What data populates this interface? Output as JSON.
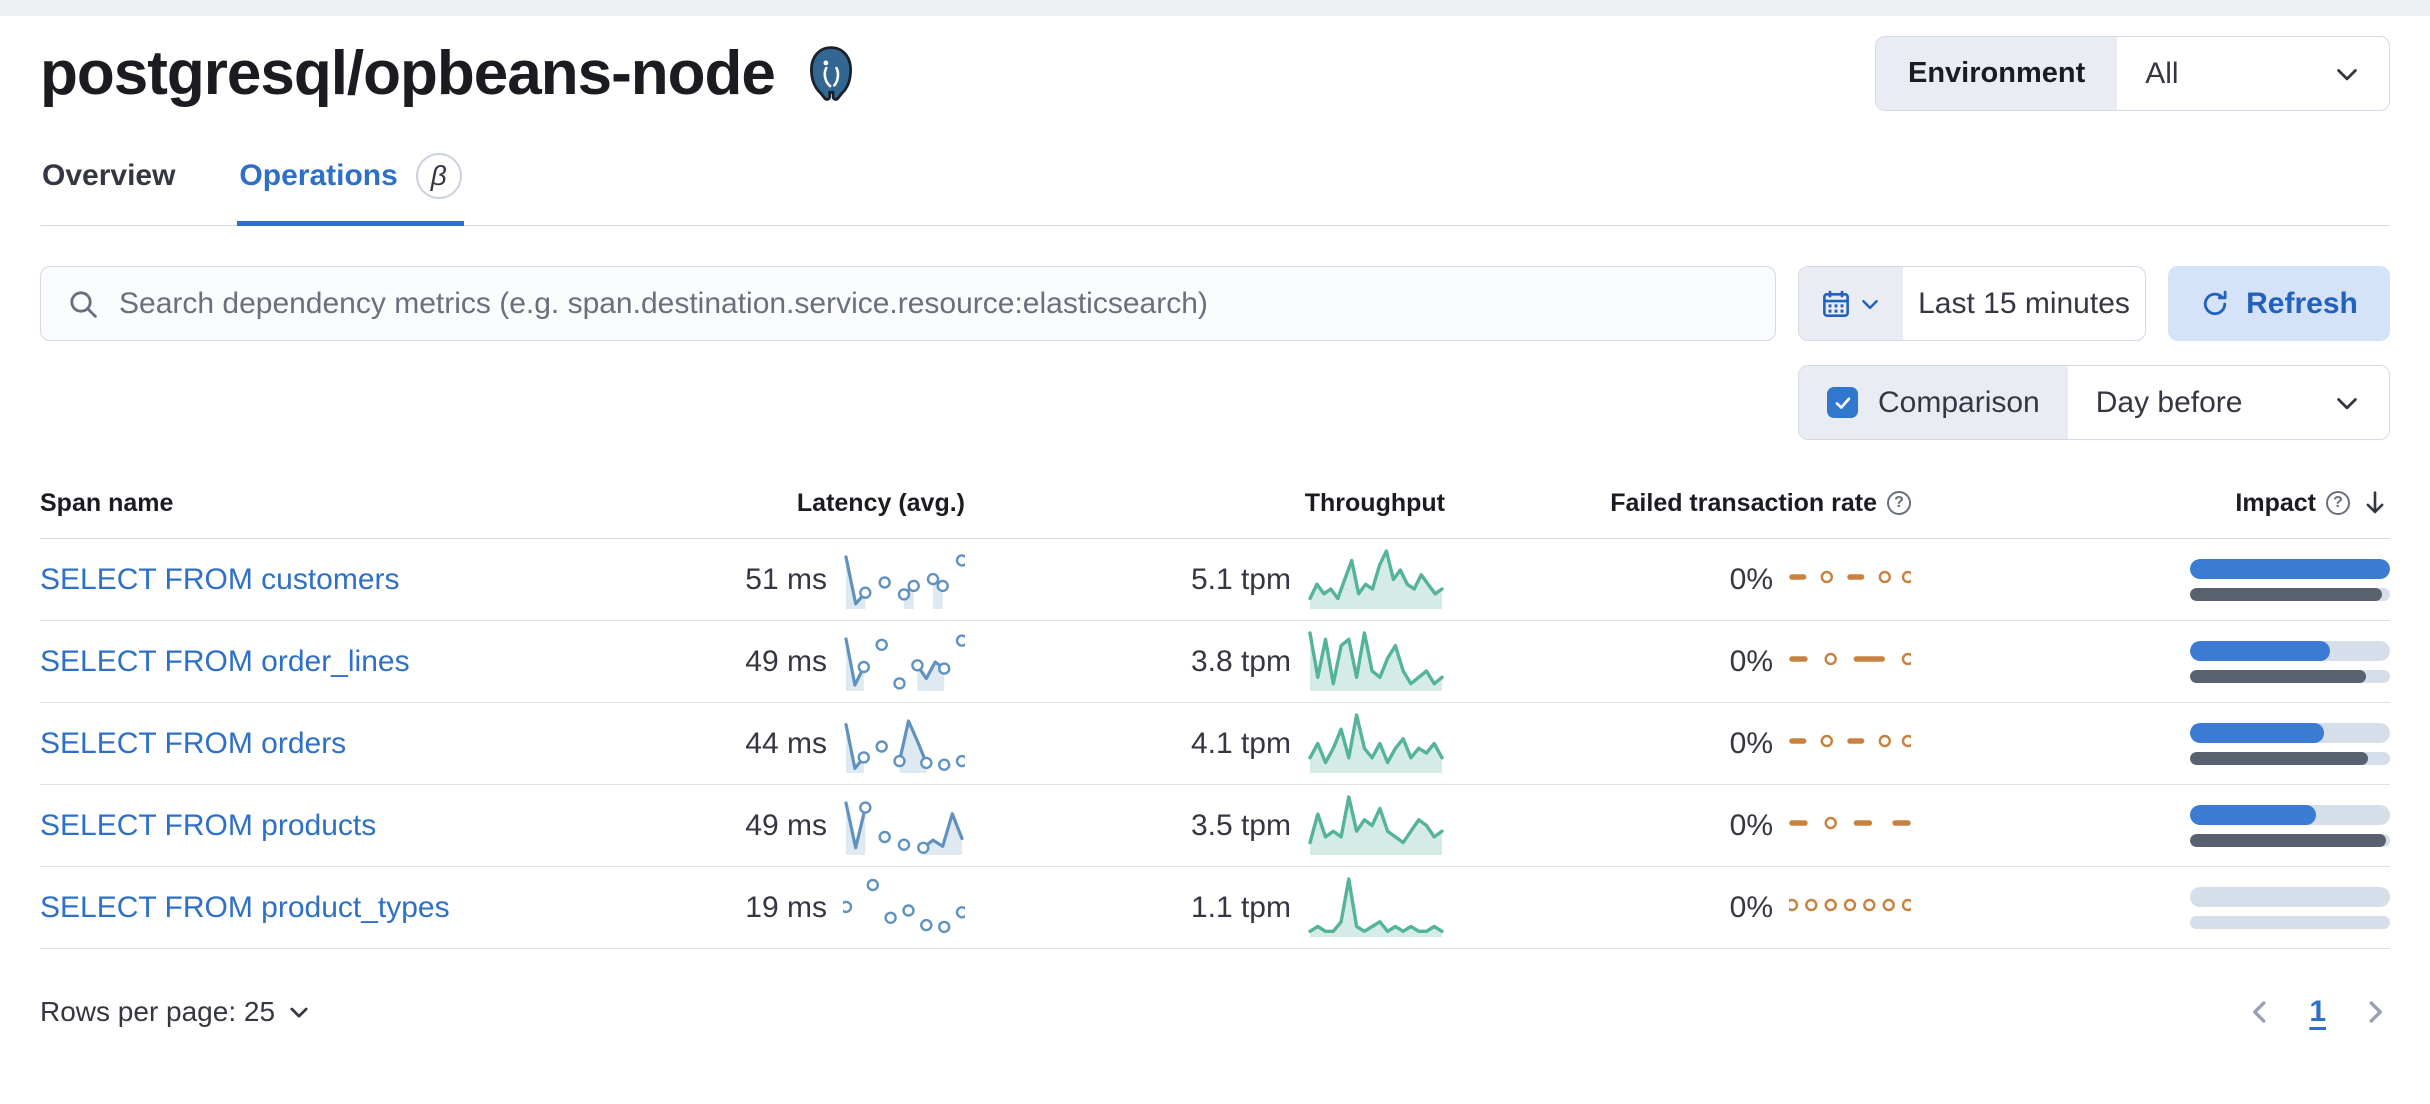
{
  "page": {
    "title": "postgresql/opbeans-node",
    "environment": {
      "label": "Environment",
      "value": "All"
    },
    "tabs": [
      {
        "label": "Overview",
        "active": false
      },
      {
        "label": "Operations",
        "active": true,
        "beta": "β"
      }
    ],
    "toolbar": {
      "search_placeholder": "Search dependency metrics (e.g. span.destination.service.resource:elasticsearch)",
      "time_range": "Last 15 minutes",
      "refresh_label": "Refresh",
      "comparison": {
        "label": "Comparison",
        "checked": true,
        "value": "Day before"
      }
    },
    "footer": {
      "rows_per_page_label": "Rows per page: 25",
      "current_page": "1"
    }
  },
  "colors": {
    "link_blue": "#2E6FC7",
    "vis_latency_blue": "#6092C0",
    "vis_throughput_green": "#54B399",
    "vis_failed_orange": "#C8823F",
    "impact_current": "#3B7BD4",
    "impact_previous": "#59616E"
  },
  "table": {
    "columns": [
      "Span name",
      "Latency (avg.)",
      "Throughput",
      "Failed transaction rate",
      "Impact"
    ],
    "rows": [
      {
        "span_name": "SELECT FROM customers",
        "latency": "51 ms",
        "latency_series": [
          60,
          5,
          18,
          null,
          30,
          null,
          16,
          26,
          null,
          34,
          26,
          null,
          56
        ],
        "throughput": "5.1 tpm",
        "throughput_series": [
          2,
          5,
          3,
          4,
          2,
          6,
          10,
          3,
          5,
          4,
          9,
          12,
          6,
          8,
          5,
          4,
          7,
          5,
          3,
          4
        ],
        "failed_rate": "0%",
        "failed_series": [
          0,
          0,
          null,
          0,
          null,
          0,
          0,
          null,
          0,
          null,
          0
        ],
        "impact_current": 100,
        "impact_previous": 96
      },
      {
        "span_name": "SELECT FROM order_lines",
        "latency": "49 ms",
        "latency_series": [
          62,
          6,
          28,
          null,
          55,
          null,
          8,
          null,
          30,
          14,
          34,
          26,
          null,
          60
        ],
        "throughput": "3.8 tpm",
        "throughput_series": [
          9,
          2,
          8,
          1,
          7,
          8,
          2,
          9,
          3,
          2,
          5,
          7,
          3,
          1,
          2,
          3,
          1,
          2
        ],
        "failed_rate": "0%",
        "failed_series": [
          0,
          0,
          null,
          0,
          null,
          0,
          0,
          0,
          null,
          0
        ],
        "impact_current": 70,
        "impact_previous": 88
      },
      {
        "span_name": "SELECT FROM orders",
        "latency": "44 ms",
        "latency_series": [
          52,
          4,
          16,
          null,
          28,
          null,
          12,
          56,
          34,
          10,
          null,
          8,
          null,
          12
        ],
        "throughput": "4.1 tpm",
        "throughput_series": [
          3,
          6,
          2,
          5,
          9,
          3,
          12,
          5,
          3,
          6,
          2,
          5,
          7,
          3,
          5,
          4,
          6,
          3
        ],
        "failed_rate": "0%",
        "failed_series": [
          0,
          0,
          null,
          0,
          null,
          0,
          0,
          null,
          0,
          null,
          0
        ],
        "impact_current": 67,
        "impact_previous": 89
      },
      {
        "span_name": "SELECT FROM products",
        "latency": "49 ms",
        "latency_series": [
          66,
          8,
          60,
          null,
          22,
          null,
          12,
          null,
          8,
          18,
          10,
          52,
          20
        ],
        "throughput": "3.5 tpm",
        "throughput_series": [
          2,
          7,
          3,
          4,
          3,
          10,
          4,
          6,
          5,
          8,
          4,
          3,
          2,
          4,
          6,
          5,
          3,
          4
        ],
        "failed_rate": "0%",
        "failed_series": [
          0,
          0,
          null,
          0,
          null,
          0,
          0,
          null,
          0,
          0
        ],
        "impact_current": 63,
        "impact_previous": 98
      },
      {
        "span_name": "SELECT FROM product_types",
        "latency": "19 ms",
        "latency_series": [
          32,
          null,
          null,
          56,
          null,
          20,
          null,
          28,
          null,
          12,
          null,
          10,
          null,
          26
        ],
        "throughput": "1.1 tpm",
        "throughput_series": [
          1,
          2,
          1,
          1,
          3,
          12,
          2,
          1,
          2,
          3,
          1,
          2,
          1,
          2,
          1,
          1,
          2,
          1
        ],
        "failed_rate": "0%",
        "failed_series": [
          0,
          null,
          0,
          null,
          0,
          null,
          0,
          null,
          0,
          null,
          0,
          null,
          0
        ],
        "impact_current": 0,
        "impact_previous": 0
      }
    ]
  }
}
